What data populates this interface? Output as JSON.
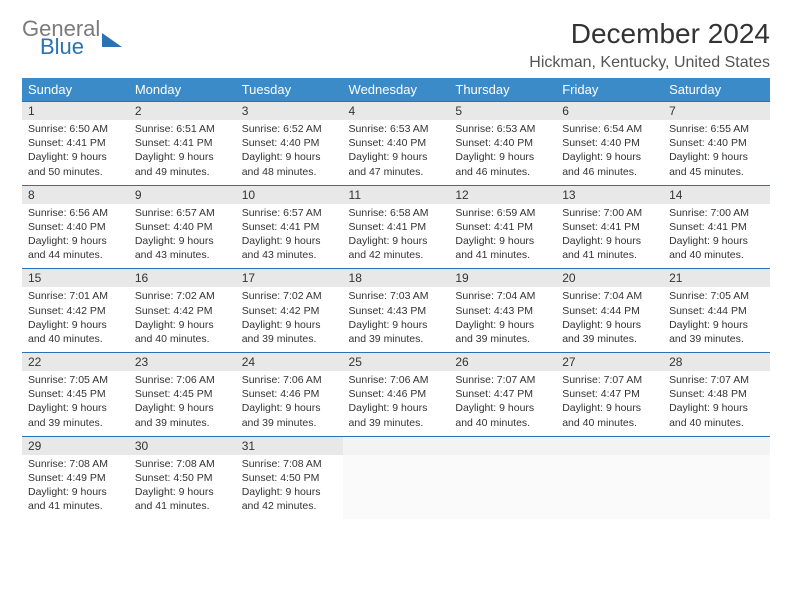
{
  "logo": {
    "line1": "General",
    "line2": "Blue"
  },
  "title": "December 2024",
  "location": "Hickman, Kentucky, United States",
  "colors": {
    "header_bg": "#3b8bc8",
    "header_text": "#ffffff",
    "daynum_bg": "#e8e8e8",
    "row_border": "#2a72b5",
    "logo_gray": "#7b7b7b",
    "logo_blue": "#2a72b5"
  },
  "day_names": [
    "Sunday",
    "Monday",
    "Tuesday",
    "Wednesday",
    "Thursday",
    "Friday",
    "Saturday"
  ],
  "weeks": [
    [
      {
        "n": "1",
        "sr": "6:50 AM",
        "ss": "4:41 PM",
        "dl": "9 hours and 50 minutes."
      },
      {
        "n": "2",
        "sr": "6:51 AM",
        "ss": "4:41 PM",
        "dl": "9 hours and 49 minutes."
      },
      {
        "n": "3",
        "sr": "6:52 AM",
        "ss": "4:40 PM",
        "dl": "9 hours and 48 minutes."
      },
      {
        "n": "4",
        "sr": "6:53 AM",
        "ss": "4:40 PM",
        "dl": "9 hours and 47 minutes."
      },
      {
        "n": "5",
        "sr": "6:53 AM",
        "ss": "4:40 PM",
        "dl": "9 hours and 46 minutes."
      },
      {
        "n": "6",
        "sr": "6:54 AM",
        "ss": "4:40 PM",
        "dl": "9 hours and 46 minutes."
      },
      {
        "n": "7",
        "sr": "6:55 AM",
        "ss": "4:40 PM",
        "dl": "9 hours and 45 minutes."
      }
    ],
    [
      {
        "n": "8",
        "sr": "6:56 AM",
        "ss": "4:40 PM",
        "dl": "9 hours and 44 minutes."
      },
      {
        "n": "9",
        "sr": "6:57 AM",
        "ss": "4:40 PM",
        "dl": "9 hours and 43 minutes."
      },
      {
        "n": "10",
        "sr": "6:57 AM",
        "ss": "4:41 PM",
        "dl": "9 hours and 43 minutes."
      },
      {
        "n": "11",
        "sr": "6:58 AM",
        "ss": "4:41 PM",
        "dl": "9 hours and 42 minutes."
      },
      {
        "n": "12",
        "sr": "6:59 AM",
        "ss": "4:41 PM",
        "dl": "9 hours and 41 minutes."
      },
      {
        "n": "13",
        "sr": "7:00 AM",
        "ss": "4:41 PM",
        "dl": "9 hours and 41 minutes."
      },
      {
        "n": "14",
        "sr": "7:00 AM",
        "ss": "4:41 PM",
        "dl": "9 hours and 40 minutes."
      }
    ],
    [
      {
        "n": "15",
        "sr": "7:01 AM",
        "ss": "4:42 PM",
        "dl": "9 hours and 40 minutes."
      },
      {
        "n": "16",
        "sr": "7:02 AM",
        "ss": "4:42 PM",
        "dl": "9 hours and 40 minutes."
      },
      {
        "n": "17",
        "sr": "7:02 AM",
        "ss": "4:42 PM",
        "dl": "9 hours and 39 minutes."
      },
      {
        "n": "18",
        "sr": "7:03 AM",
        "ss": "4:43 PM",
        "dl": "9 hours and 39 minutes."
      },
      {
        "n": "19",
        "sr": "7:04 AM",
        "ss": "4:43 PM",
        "dl": "9 hours and 39 minutes."
      },
      {
        "n": "20",
        "sr": "7:04 AM",
        "ss": "4:44 PM",
        "dl": "9 hours and 39 minutes."
      },
      {
        "n": "21",
        "sr": "7:05 AM",
        "ss": "4:44 PM",
        "dl": "9 hours and 39 minutes."
      }
    ],
    [
      {
        "n": "22",
        "sr": "7:05 AM",
        "ss": "4:45 PM",
        "dl": "9 hours and 39 minutes."
      },
      {
        "n": "23",
        "sr": "7:06 AM",
        "ss": "4:45 PM",
        "dl": "9 hours and 39 minutes."
      },
      {
        "n": "24",
        "sr": "7:06 AM",
        "ss": "4:46 PM",
        "dl": "9 hours and 39 minutes."
      },
      {
        "n": "25",
        "sr": "7:06 AM",
        "ss": "4:46 PM",
        "dl": "9 hours and 39 minutes."
      },
      {
        "n": "26",
        "sr": "7:07 AM",
        "ss": "4:47 PM",
        "dl": "9 hours and 40 minutes."
      },
      {
        "n": "27",
        "sr": "7:07 AM",
        "ss": "4:47 PM",
        "dl": "9 hours and 40 minutes."
      },
      {
        "n": "28",
        "sr": "7:07 AM",
        "ss": "4:48 PM",
        "dl": "9 hours and 40 minutes."
      }
    ],
    [
      {
        "n": "29",
        "sr": "7:08 AM",
        "ss": "4:49 PM",
        "dl": "9 hours and 41 minutes."
      },
      {
        "n": "30",
        "sr": "7:08 AM",
        "ss": "4:50 PM",
        "dl": "9 hours and 41 minutes."
      },
      {
        "n": "31",
        "sr": "7:08 AM",
        "ss": "4:50 PM",
        "dl": "9 hours and 42 minutes."
      },
      null,
      null,
      null,
      null
    ]
  ],
  "labels": {
    "sunrise": "Sunrise: ",
    "sunset": "Sunset: ",
    "daylight": "Daylight: "
  }
}
